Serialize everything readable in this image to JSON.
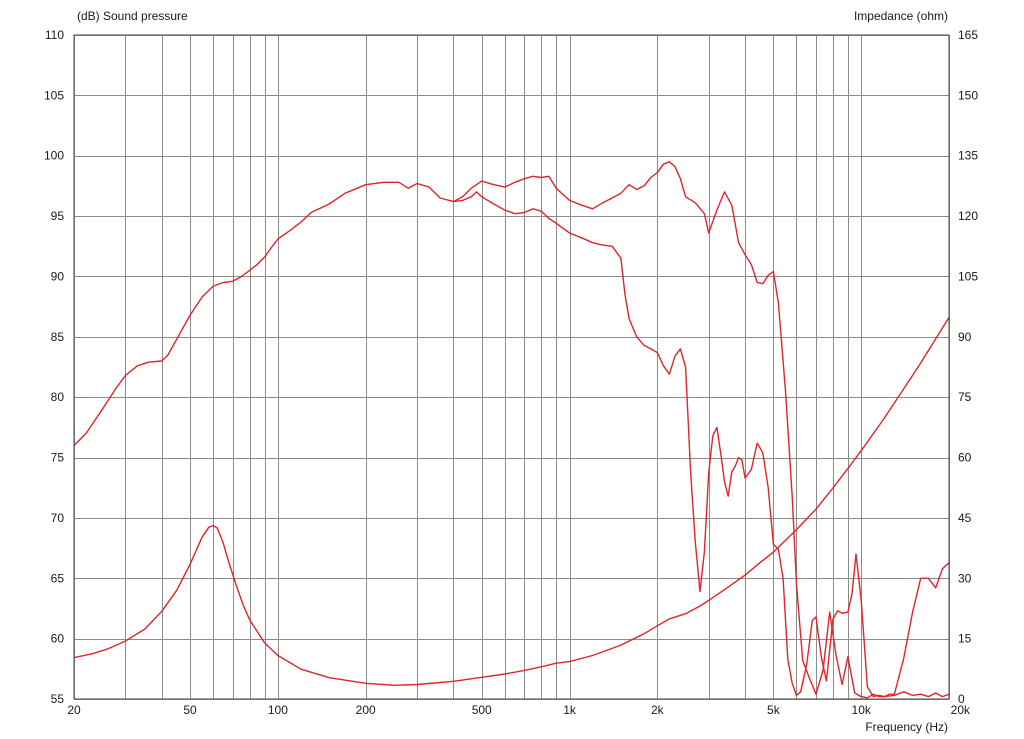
{
  "chart_data": {
    "type": "line",
    "xlabel": "Frequency  (Hz)",
    "ylabel_left": "(dB)  Sound pressure",
    "ylabel_right": "Impedance  (ohm)",
    "x_scale": "log",
    "xlim": [
      20,
      20000
    ],
    "ylim_left": [
      55,
      110
    ],
    "ylim_right": [
      0,
      165
    ],
    "grid": true,
    "line_color": "#e0242b",
    "x_ticks": [
      {
        "value": 20,
        "label": "20"
      },
      {
        "value": 50,
        "label": "50"
      },
      {
        "value": 100,
        "label": "100"
      },
      {
        "value": 200,
        "label": "200"
      },
      {
        "value": 500,
        "label": "500"
      },
      {
        "value": 1000,
        "label": "1k"
      },
      {
        "value": 2000,
        "label": "2k"
      },
      {
        "value": 5000,
        "label": "5k"
      },
      {
        "value": 10000,
        "label": "10k"
      },
      {
        "value": 20000,
        "label": "20k"
      }
    ],
    "x_minor_grid": [
      30,
      40,
      60,
      70,
      80,
      90,
      300,
      400,
      600,
      700,
      800,
      900,
      3000,
      4000,
      6000,
      7000,
      8000,
      9000
    ],
    "y_ticks_left": [
      "110",
      "105",
      "100",
      "95",
      "90",
      "85",
      "80",
      "75",
      "70",
      "65",
      "60",
      "55"
    ],
    "y_ticks_right": [
      "165",
      "150",
      "135",
      "120",
      "105",
      "90",
      "75",
      "60",
      "45",
      "30",
      "15",
      "0"
    ],
    "series": [
      {
        "axis": "left",
        "x": [
          20,
          22,
          25,
          28,
          30,
          33,
          36,
          40,
          42,
          45,
          50,
          55,
          60,
          65,
          70,
          75,
          80,
          85,
          90,
          95,
          100,
          110,
          120,
          130,
          150,
          170,
          200,
          230,
          260,
          280,
          300,
          330,
          360,
          400,
          430,
          460,
          500,
          550,
          600,
          650,
          700,
          750,
          800,
          850,
          900,
          1000,
          1100,
          1200,
          1300,
          1400,
          1500,
          1600,
          1700,
          1800,
          1900,
          2000,
          2100,
          2200,
          2300,
          2400,
          2500,
          2700,
          2900,
          3000,
          3200,
          3400,
          3600,
          3800,
          4000,
          4200,
          4400,
          4600,
          4800,
          5000,
          5200,
          5500,
          5800,
          6000,
          6300,
          6600,
          7000,
          7400,
          7800,
          8200,
          8600,
          9000,
          9500,
          10000,
          10500,
          11000,
          11500,
          12000,
          13000,
          14000,
          15000,
          16000,
          17000,
          18000,
          19000,
          20000
        ],
        "y": [
          76,
          77,
          79,
          80.8,
          81.8,
          82.6,
          82.9,
          83,
          83.5,
          84.8,
          86.8,
          88.3,
          89.2,
          89.5,
          89.6,
          90,
          90.5,
          91,
          91.6,
          92.4,
          93.1,
          93.8,
          94.5,
          95.3,
          96,
          96.9,
          97.6,
          97.8,
          97.8,
          97.3,
          97.7,
          97.4,
          96.5,
          96.2,
          96.6,
          97.3,
          97.9,
          97.6,
          97.4,
          97.8,
          98.1,
          98.3,
          98.2,
          98.3,
          97.3,
          96.3,
          95.9,
          95.6,
          96.1,
          96.5,
          96.9,
          97.6,
          97.2,
          97.5,
          98.2,
          98.6,
          99.3,
          99.5,
          99.1,
          98.1,
          96.6,
          96.1,
          95.2,
          93.6,
          95.5,
          97,
          95.9,
          92.8,
          91.8,
          91,
          89.5,
          89.4,
          90.1,
          90.4,
          87.8,
          80.5,
          71.8,
          64.5,
          58.2,
          56.9,
          55.4,
          57.4,
          62.2,
          58.6,
          56.2,
          58.5,
          55.5,
          55.2,
          55.1,
          55.4,
          55.2,
          55.2,
          55.3,
          55.6,
          55.3,
          55.4,
          55.2,
          55.5,
          55.2,
          55.4
        ]
      },
      {
        "axis": "left",
        "x": [
          400,
          430,
          460,
          480,
          500,
          550,
          600,
          650,
          700,
          750,
          800,
          850,
          900,
          1000,
          1100,
          1200,
          1300,
          1400,
          1500,
          1550,
          1600,
          1700,
          1800,
          1900,
          2000,
          2100,
          2200,
          2300,
          2400,
          2500,
          2600,
          2700,
          2800,
          2900,
          3000,
          3100,
          3200,
          3300,
          3400,
          3500,
          3600,
          3700,
          3800,
          3900,
          4000,
          4200,
          4400,
          4600,
          4800,
          5000,
          5200,
          5400,
          5600,
          5800,
          6000,
          6200,
          6500,
          6800,
          7000,
          7300,
          7600,
          8000,
          8300,
          8600,
          9000,
          9300,
          9600,
          10000,
          10500,
          11000,
          11500,
          12000,
          12500,
          13000,
          14000,
          15000,
          16000,
          17000,
          18000,
          19000,
          20000
        ],
        "y": [
          96.2,
          96.3,
          96.6,
          97,
          96.6,
          96,
          95.5,
          95.2,
          95.3,
          95.6,
          95.4,
          94.8,
          94.4,
          93.6,
          93.2,
          92.8,
          92.6,
          92.5,
          91.5,
          88.5,
          86.5,
          85,
          84.3,
          84,
          83.7,
          82.6,
          81.9,
          83.4,
          84,
          82.5,
          73.8,
          68,
          63.9,
          67.2,
          73.7,
          76.8,
          77.5,
          75.3,
          73,
          71.8,
          73.8,
          74.3,
          75,
          74.8,
          73.3,
          74,
          76.2,
          75.4,
          72.5,
          67.8,
          67.4,
          65,
          58.3,
          56.3,
          55.3,
          55.6,
          57.8,
          61.5,
          61.8,
          58.5,
          56.5,
          61.6,
          62.3,
          62.1,
          62.2,
          63.7,
          67,
          63.2,
          56,
          55.2,
          55.3,
          55.2,
          55.4,
          55.4,
          58.4,
          62.2,
          65,
          65,
          64.2,
          65.8,
          66.3
        ]
      },
      {
        "axis": "right",
        "x": [
          20,
          23,
          26,
          30,
          35,
          40,
          45,
          50,
          55,
          58,
          60,
          62,
          65,
          68,
          72,
          76,
          80,
          90,
          100,
          120,
          150,
          200,
          250,
          300,
          400,
          500,
          600,
          700,
          800,
          900,
          1000,
          1200,
          1500,
          1800,
          2000,
          2200,
          2500,
          2800,
          3000,
          3500,
          4000,
          4500,
          5000,
          6000,
          7000,
          8000,
          9000,
          10000,
          12000,
          14000,
          16000,
          18000,
          20000
        ],
        "y": [
          10.3,
          11.2,
          12.4,
          14.4,
          17.4,
          21.8,
          27,
          33.5,
          40.2,
          42.7,
          43.1,
          42.5,
          38.7,
          33.8,
          28.2,
          23.4,
          19.7,
          14,
          10.8,
          7.4,
          5.3,
          3.9,
          3.4,
          3.6,
          4.4,
          5.4,
          6.2,
          7.1,
          8,
          8.9,
          9.3,
          10.8,
          13.4,
          16.2,
          18.2,
          19.9,
          21.2,
          23.1,
          24.5,
          27.8,
          30.8,
          33.9,
          36.5,
          42.1,
          47.2,
          52.4,
          57.3,
          61.7,
          69.8,
          77.1,
          83.5,
          89.5,
          94.8
        ]
      }
    ]
  }
}
